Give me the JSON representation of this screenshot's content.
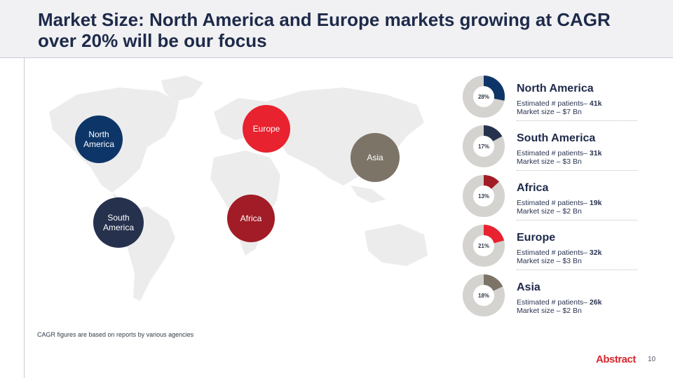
{
  "slide": {
    "title": "Market Size: North America and Europe markets growing at CAGR over 20% will be our focus",
    "footnote": "CAGR figures are based on reports by various agencies",
    "logo": "Abstract",
    "page_number": "10"
  },
  "map_bubbles": [
    {
      "label": "North\nAmerica",
      "color": "#0d3568"
    },
    {
      "label": "Europe",
      "color": "#e8222e"
    },
    {
      "label": "Asia",
      "color": "#7d7468"
    },
    {
      "label": "South\nAmerica",
      "color": "#26314d"
    },
    {
      "label": "Africa",
      "color": "#a11c26"
    }
  ],
  "regions": [
    {
      "name": "North America",
      "percent_label": "28%",
      "share": 0.28,
      "color": "#0d3568",
      "patients_label": "Estimated # patients– ",
      "patients_value": "41k",
      "market_size": "Market size – $7 Bn"
    },
    {
      "name": "South America",
      "percent_label": "17%",
      "share": 0.17,
      "color": "#26314d",
      "patients_label": "Estimated # patients– ",
      "patients_value": "31k",
      "market_size": "Market size – $3 Bn"
    },
    {
      "name": "Africa",
      "percent_label": "13%",
      "share": 0.13,
      "color": "#a11c26",
      "patients_label": "Estimated # patients– ",
      "patients_value": "19k",
      "market_size": "Market size – $2 Bn"
    },
    {
      "name": "Europe",
      "percent_label": "21%",
      "share": 0.21,
      "color": "#e8222e",
      "patients_label": "Estimated # patients– ",
      "patients_value": "32k",
      "market_size": "Market size – $3 Bn"
    },
    {
      "name": "Asia",
      "percent_label": "18%",
      "share": 0.18,
      "color": "#7d7468",
      "patients_label": "Estimated # patients– ",
      "patients_value": "26k",
      "market_size": "Market size – $2 Bn"
    }
  ],
  "colors": {
    "ring_background": "#d4d3cf",
    "map_land": "#ececec"
  }
}
